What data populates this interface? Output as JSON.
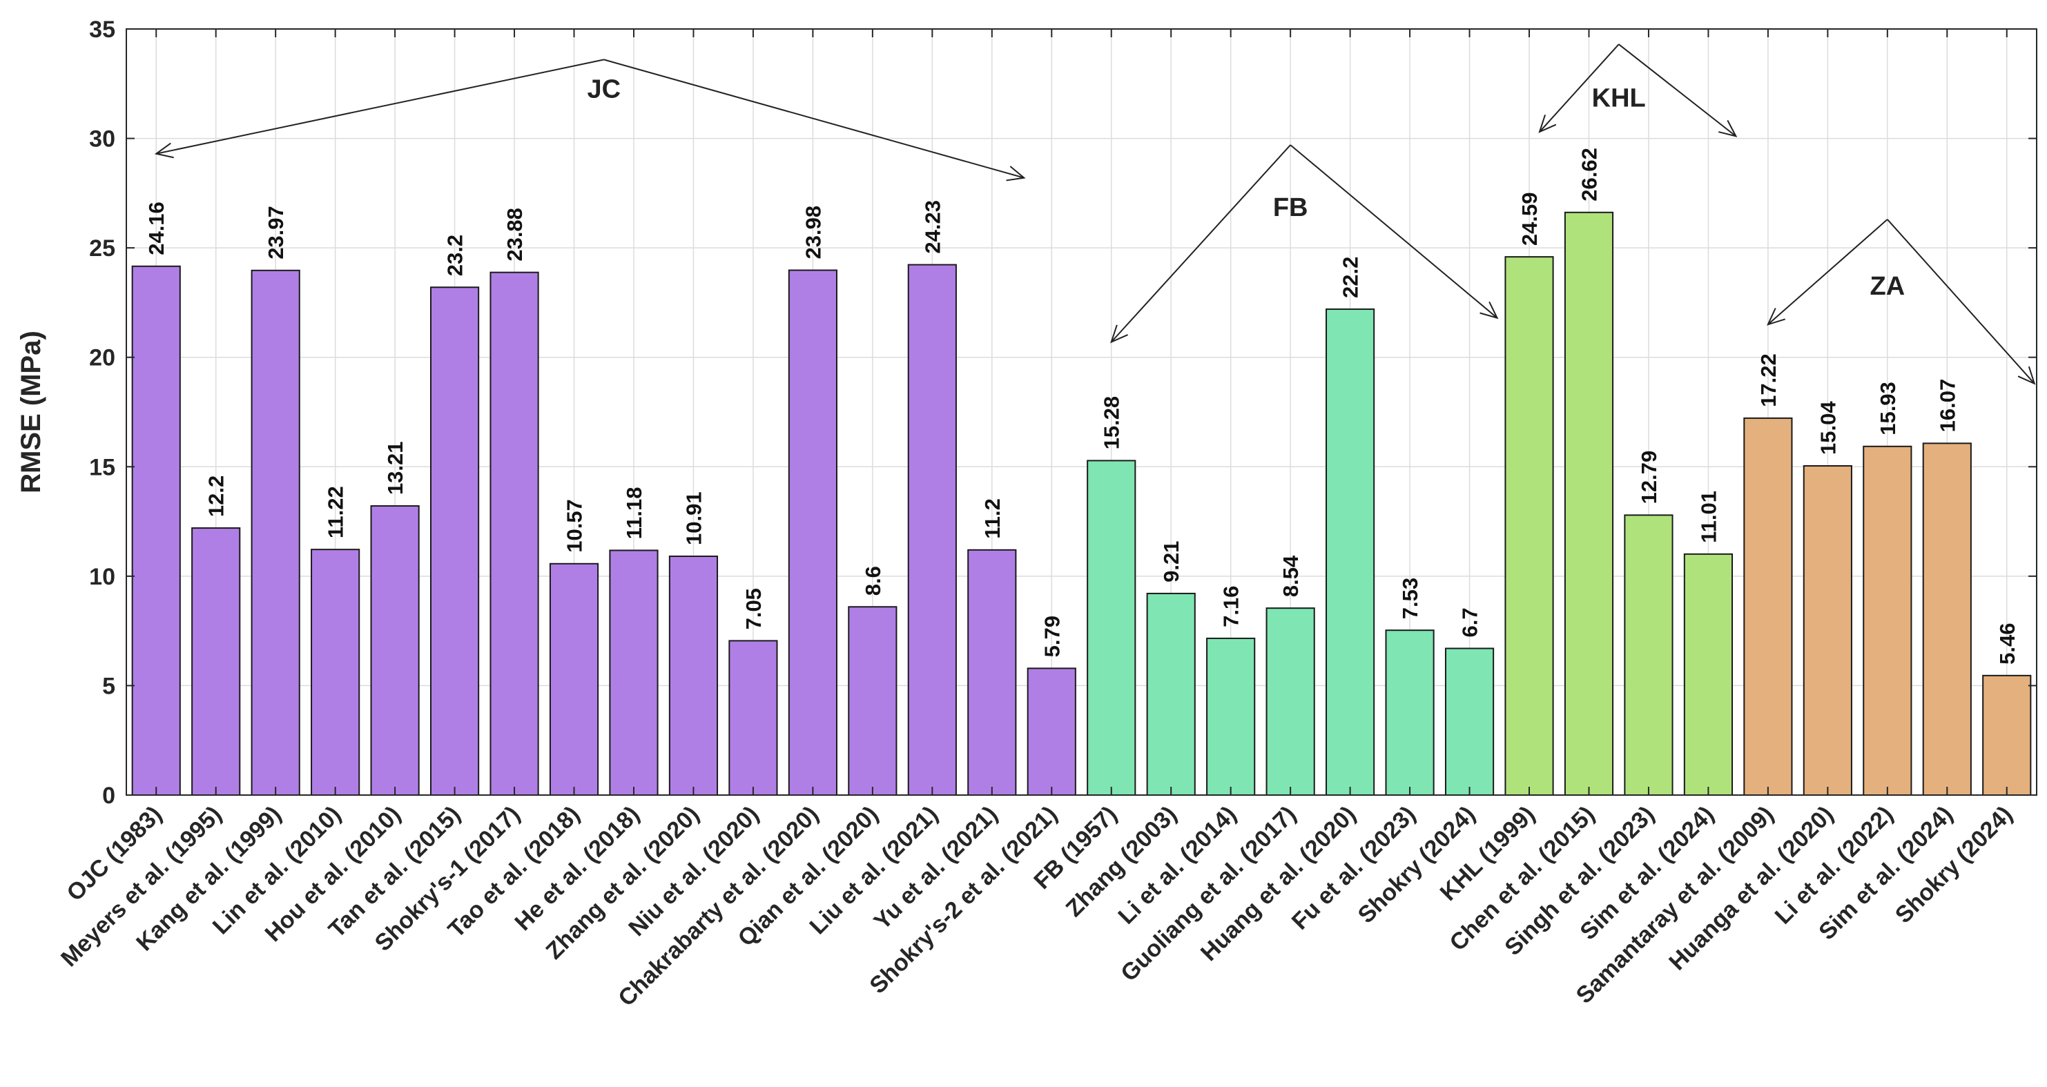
{
  "chart_data": {
    "type": "bar",
    "ylabel": "RMSE (MPa)",
    "xlabel": "",
    "ylim": [
      0,
      35
    ],
    "yticks": [
      0,
      5,
      10,
      15,
      20,
      25,
      30,
      35
    ],
    "grid": true,
    "categories": [
      "OJC (1983)",
      "Meyers et al. (1995)",
      "Kang et al. (1999)",
      "Lin et al. (2010)",
      "Hou et al. (2010)",
      "Tan et al. (2015)",
      "Shokry's-1 (2017)",
      "Tao et al. (2018)",
      "He et al. (2018)",
      "Zhang et al. (2020)",
      "Niu et al. (2020)",
      "Chakrabarty et al. (2020)",
      "Qian et al. (2020)",
      "Liu et al. (2021)",
      "Yu et al. (2021)",
      "Shokry's-2 et al. (2021)",
      "FB (1957)",
      "Zhang (2003)",
      "Li et al. (2014)",
      "Guoliang et al. (2017)",
      "Huang et al. (2020)",
      "Fu et al. (2023)",
      "Shokry (2024)",
      "KHL (1999)",
      "Chen et al. (2015)",
      "Singh et al. (2023)",
      "Sim et al. (2024)",
      "Samantaray et al. (2009)",
      "Huanga et al. (2020)",
      "Li et al. (2022)",
      "Sim et al. (2024)",
      "Shokry (2024)"
    ],
    "values": [
      24.16,
      12.2,
      23.97,
      11.22,
      13.21,
      23.2,
      23.88,
      10.57,
      11.18,
      10.91,
      7.05,
      23.98,
      8.6,
      24.23,
      11.2,
      5.79,
      15.28,
      9.21,
      7.16,
      8.54,
      22.2,
      7.53,
      6.7,
      24.59,
      26.62,
      12.79,
      11.01,
      17.22,
      15.04,
      15.93,
      16.07,
      5.46
    ],
    "value_labels": [
      "24.16",
      "12.2",
      "23.97",
      "11.22",
      "13.21",
      "23.2",
      "23.88",
      "10.57",
      "11.18",
      "10.91",
      "7.05",
      "23.98",
      "8.6",
      "24.23",
      "11.2",
      "5.79",
      "15.28",
      "9.21",
      "7.16",
      "8.54",
      "22.2",
      "7.53",
      "6.7",
      "24.59",
      "26.62",
      "12.79",
      "11.01",
      "17.22",
      "15.04",
      "15.93",
      "16.07",
      "5.46"
    ],
    "groups": [
      {
        "name": "JC",
        "start": 0,
        "end": 15,
        "color": "#b07fe6",
        "label_y": 32.3,
        "apex_y": 33.6,
        "left_y": 29.3,
        "right_y": 28.2
      },
      {
        "name": "FB",
        "start": 16,
        "end": 22,
        "color": "#7fe5b2",
        "label_y": 26.9,
        "apex_y": 29.7,
        "left_y": 20.7,
        "right_y": 21.8
      },
      {
        "name": "KHL",
        "start": 23,
        "end": 26,
        "color": "#b0e27c",
        "label_y": 31.9,
        "apex_y": 34.3,
        "left_y": 30.3,
        "right_y": 30.1
      },
      {
        "name": "ZA",
        "start": 27,
        "end": 31,
        "color": "#e4b07e",
        "label_y": 23.3,
        "apex_y": 26.3,
        "left_y": 21.5,
        "right_y": 18.8
      }
    ]
  }
}
